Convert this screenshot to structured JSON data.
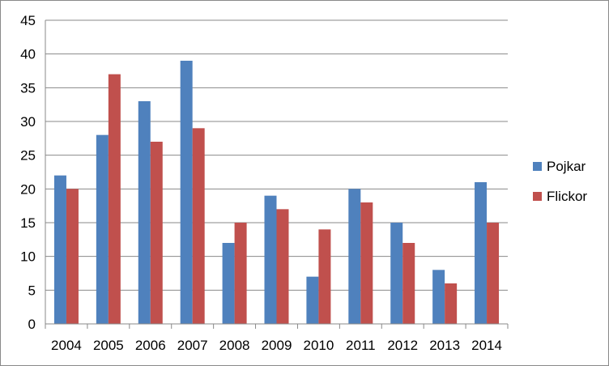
{
  "chart_data": {
    "type": "bar",
    "title": "",
    "xlabel": "",
    "ylabel": "",
    "categories": [
      "2004",
      "2005",
      "2006",
      "2007",
      "2008",
      "2009",
      "2010",
      "2011",
      "2012",
      "2013",
      "2014"
    ],
    "series": [
      {
        "name": "Pojkar",
        "color": "#4f81bd",
        "values": [
          22,
          28,
          33,
          39,
          12,
          19,
          7,
          20,
          15,
          8,
          21
        ]
      },
      {
        "name": "Flickor",
        "color": "#c0504d",
        "values": [
          20,
          37,
          27,
          29,
          15,
          17,
          14,
          18,
          12,
          6,
          15
        ]
      }
    ],
    "ylim": [
      0,
      45
    ],
    "yticks": [
      "0",
      "5",
      "10",
      "15",
      "20",
      "25",
      "30",
      "35",
      "40",
      "45"
    ],
    "grid": true,
    "legend": "right"
  }
}
